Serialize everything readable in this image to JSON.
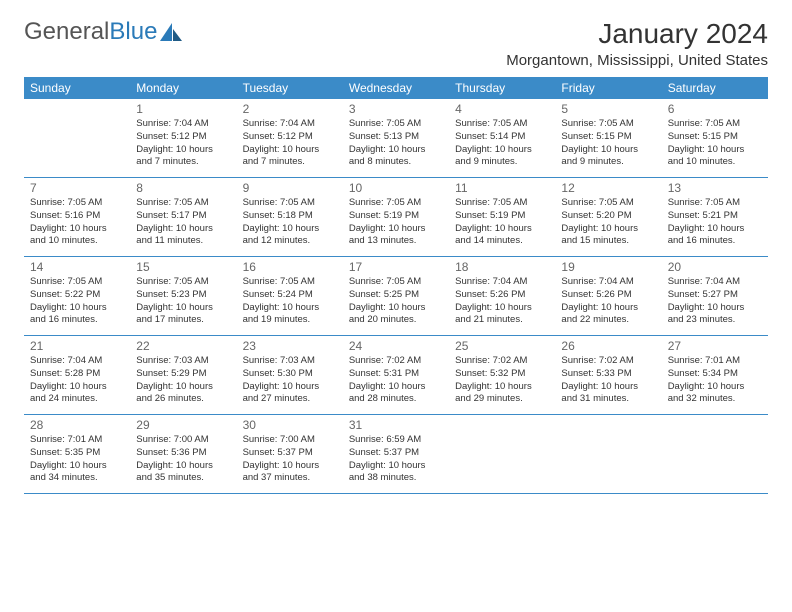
{
  "logo": {
    "text1": "General",
    "text2": "Blue"
  },
  "title": "January 2024",
  "location": "Morgantown, Mississippi, United States",
  "colors": {
    "header_bg": "#3b8bc8",
    "header_text": "#ffffff",
    "border": "#3b8bc8",
    "daynum": "#666666",
    "body_text": "#333333"
  },
  "day_names": [
    "Sunday",
    "Monday",
    "Tuesday",
    "Wednesday",
    "Thursday",
    "Friday",
    "Saturday"
  ],
  "weeks": [
    [
      null,
      {
        "n": "1",
        "sr": "Sunrise: 7:04 AM",
        "ss": "Sunset: 5:12 PM",
        "d1": "Daylight: 10 hours",
        "d2": "and 7 minutes."
      },
      {
        "n": "2",
        "sr": "Sunrise: 7:04 AM",
        "ss": "Sunset: 5:12 PM",
        "d1": "Daylight: 10 hours",
        "d2": "and 7 minutes."
      },
      {
        "n": "3",
        "sr": "Sunrise: 7:05 AM",
        "ss": "Sunset: 5:13 PM",
        "d1": "Daylight: 10 hours",
        "d2": "and 8 minutes."
      },
      {
        "n": "4",
        "sr": "Sunrise: 7:05 AM",
        "ss": "Sunset: 5:14 PM",
        "d1": "Daylight: 10 hours",
        "d2": "and 9 minutes."
      },
      {
        "n": "5",
        "sr": "Sunrise: 7:05 AM",
        "ss": "Sunset: 5:15 PM",
        "d1": "Daylight: 10 hours",
        "d2": "and 9 minutes."
      },
      {
        "n": "6",
        "sr": "Sunrise: 7:05 AM",
        "ss": "Sunset: 5:15 PM",
        "d1": "Daylight: 10 hours",
        "d2": "and 10 minutes."
      }
    ],
    [
      {
        "n": "7",
        "sr": "Sunrise: 7:05 AM",
        "ss": "Sunset: 5:16 PM",
        "d1": "Daylight: 10 hours",
        "d2": "and 10 minutes."
      },
      {
        "n": "8",
        "sr": "Sunrise: 7:05 AM",
        "ss": "Sunset: 5:17 PM",
        "d1": "Daylight: 10 hours",
        "d2": "and 11 minutes."
      },
      {
        "n": "9",
        "sr": "Sunrise: 7:05 AM",
        "ss": "Sunset: 5:18 PM",
        "d1": "Daylight: 10 hours",
        "d2": "and 12 minutes."
      },
      {
        "n": "10",
        "sr": "Sunrise: 7:05 AM",
        "ss": "Sunset: 5:19 PM",
        "d1": "Daylight: 10 hours",
        "d2": "and 13 minutes."
      },
      {
        "n": "11",
        "sr": "Sunrise: 7:05 AM",
        "ss": "Sunset: 5:19 PM",
        "d1": "Daylight: 10 hours",
        "d2": "and 14 minutes."
      },
      {
        "n": "12",
        "sr": "Sunrise: 7:05 AM",
        "ss": "Sunset: 5:20 PM",
        "d1": "Daylight: 10 hours",
        "d2": "and 15 minutes."
      },
      {
        "n": "13",
        "sr": "Sunrise: 7:05 AM",
        "ss": "Sunset: 5:21 PM",
        "d1": "Daylight: 10 hours",
        "d2": "and 16 minutes."
      }
    ],
    [
      {
        "n": "14",
        "sr": "Sunrise: 7:05 AM",
        "ss": "Sunset: 5:22 PM",
        "d1": "Daylight: 10 hours",
        "d2": "and 16 minutes."
      },
      {
        "n": "15",
        "sr": "Sunrise: 7:05 AM",
        "ss": "Sunset: 5:23 PM",
        "d1": "Daylight: 10 hours",
        "d2": "and 17 minutes."
      },
      {
        "n": "16",
        "sr": "Sunrise: 7:05 AM",
        "ss": "Sunset: 5:24 PM",
        "d1": "Daylight: 10 hours",
        "d2": "and 19 minutes."
      },
      {
        "n": "17",
        "sr": "Sunrise: 7:05 AM",
        "ss": "Sunset: 5:25 PM",
        "d1": "Daylight: 10 hours",
        "d2": "and 20 minutes."
      },
      {
        "n": "18",
        "sr": "Sunrise: 7:04 AM",
        "ss": "Sunset: 5:26 PM",
        "d1": "Daylight: 10 hours",
        "d2": "and 21 minutes."
      },
      {
        "n": "19",
        "sr": "Sunrise: 7:04 AM",
        "ss": "Sunset: 5:26 PM",
        "d1": "Daylight: 10 hours",
        "d2": "and 22 minutes."
      },
      {
        "n": "20",
        "sr": "Sunrise: 7:04 AM",
        "ss": "Sunset: 5:27 PM",
        "d1": "Daylight: 10 hours",
        "d2": "and 23 minutes."
      }
    ],
    [
      {
        "n": "21",
        "sr": "Sunrise: 7:04 AM",
        "ss": "Sunset: 5:28 PM",
        "d1": "Daylight: 10 hours",
        "d2": "and 24 minutes."
      },
      {
        "n": "22",
        "sr": "Sunrise: 7:03 AM",
        "ss": "Sunset: 5:29 PM",
        "d1": "Daylight: 10 hours",
        "d2": "and 26 minutes."
      },
      {
        "n": "23",
        "sr": "Sunrise: 7:03 AM",
        "ss": "Sunset: 5:30 PM",
        "d1": "Daylight: 10 hours",
        "d2": "and 27 minutes."
      },
      {
        "n": "24",
        "sr": "Sunrise: 7:02 AM",
        "ss": "Sunset: 5:31 PM",
        "d1": "Daylight: 10 hours",
        "d2": "and 28 minutes."
      },
      {
        "n": "25",
        "sr": "Sunrise: 7:02 AM",
        "ss": "Sunset: 5:32 PM",
        "d1": "Daylight: 10 hours",
        "d2": "and 29 minutes."
      },
      {
        "n": "26",
        "sr": "Sunrise: 7:02 AM",
        "ss": "Sunset: 5:33 PM",
        "d1": "Daylight: 10 hours",
        "d2": "and 31 minutes."
      },
      {
        "n": "27",
        "sr": "Sunrise: 7:01 AM",
        "ss": "Sunset: 5:34 PM",
        "d1": "Daylight: 10 hours",
        "d2": "and 32 minutes."
      }
    ],
    [
      {
        "n": "28",
        "sr": "Sunrise: 7:01 AM",
        "ss": "Sunset: 5:35 PM",
        "d1": "Daylight: 10 hours",
        "d2": "and 34 minutes."
      },
      {
        "n": "29",
        "sr": "Sunrise: 7:00 AM",
        "ss": "Sunset: 5:36 PM",
        "d1": "Daylight: 10 hours",
        "d2": "and 35 minutes."
      },
      {
        "n": "30",
        "sr": "Sunrise: 7:00 AM",
        "ss": "Sunset: 5:37 PM",
        "d1": "Daylight: 10 hours",
        "d2": "and 37 minutes."
      },
      {
        "n": "31",
        "sr": "Sunrise: 6:59 AM",
        "ss": "Sunset: 5:37 PM",
        "d1": "Daylight: 10 hours",
        "d2": "and 38 minutes."
      },
      null,
      null,
      null
    ]
  ]
}
